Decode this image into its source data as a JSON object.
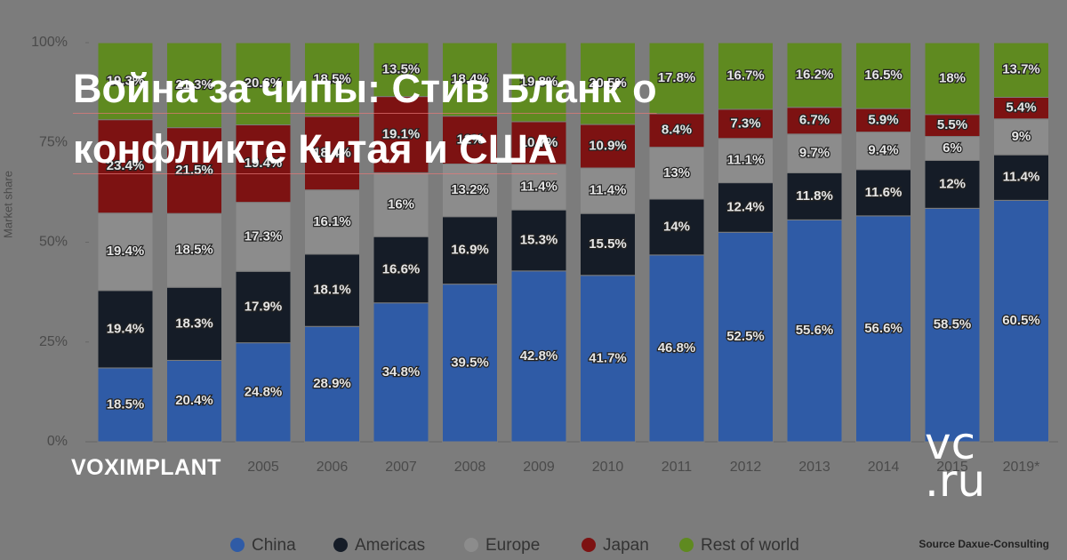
{
  "headline": "Война за чипы: Стив Бланк о конфликте Китая и США",
  "brand": "VOXIMPLANT",
  "logo_top": "vc",
  "logo_bottom": ".ru",
  "chart_data": {
    "type": "stacked_bar",
    "y_label": "Market share",
    "source": "Source Daxue-Consulting",
    "categories": [
      null,
      null,
      "2005",
      "2006",
      "2007",
      "2008",
      "2009",
      "2010",
      "2011",
      "2012",
      "2013",
      "2014",
      "2015",
      "2019*"
    ],
    "ylim": [
      0,
      100
    ],
    "yticks": [
      {
        "value": 0,
        "label": "0%"
      },
      {
        "value": 25,
        "label": "25%"
      },
      {
        "value": 50,
        "label": "50%"
      },
      {
        "value": 75,
        "label": "75%"
      },
      {
        "value": 100,
        "label": "100%"
      }
    ],
    "grid": false,
    "legend": "bottom",
    "series": [
      {
        "name": "China",
        "color": "#2f5ba6",
        "values": [
          18.5,
          20.4,
          24.8,
          28.9,
          34.8,
          39.5,
          42.8,
          41.7,
          46.8,
          52.5,
          55.6,
          56.6,
          58.5,
          60.5
        ],
        "value_labels": [
          "18.5%",
          "20.4%",
          "24.8%",
          "28.9%",
          "34.8%",
          "39.5%",
          "42.8%",
          "41.7%",
          "46.8%",
          "52.5%",
          "55.6%",
          "56.6%",
          "58.5%",
          "60.5%"
        ]
      },
      {
        "name": "Americas",
        "color": "#151c27",
        "values": [
          19.4,
          18.3,
          17.9,
          18.1,
          16.6,
          16.9,
          15.3,
          15.5,
          14,
          12.4,
          11.8,
          11.6,
          12,
          11.4
        ],
        "value_labels": [
          "19.4%",
          "18.3%",
          "17.9%",
          "18.1%",
          "16.6%",
          "16.9%",
          "15.3%",
          "15.5%",
          "14%",
          "12.4%",
          "11.8%",
          "11.6%",
          "12%",
          "11.4%"
        ]
      },
      {
        "name": "Europe",
        "color": "#8c8c8c",
        "values": [
          19.4,
          18.5,
          17.3,
          16.1,
          16,
          13.2,
          11.4,
          11.4,
          13,
          11.1,
          9.7,
          9.4,
          6,
          9
        ],
        "value_labels": [
          "19.4%",
          "18.5%",
          "17.3%",
          "16.1%",
          "16%",
          "13.2%",
          "11.4%",
          "11.4%",
          "13%",
          "11.1%",
          "9.7%",
          "9.4%",
          "6%",
          "9%"
        ]
      },
      {
        "name": "Japan",
        "color": "#7d1212",
        "values": [
          23.4,
          21.5,
          19.4,
          18.4,
          19.1,
          12,
          10.7,
          10.9,
          8.4,
          7.3,
          6.7,
          5.9,
          5.5,
          5.4
        ],
        "value_labels": [
          "23.4%",
          "21.5%",
          "19.4%",
          "18.4%",
          "19.1%",
          "12%",
          "10.7%",
          "10.9%",
          "8.4%",
          "7.3%",
          "6.7%",
          "5.9%",
          "5.5%",
          "5.4%"
        ]
      },
      {
        "name": "Rest of world",
        "color": "#5f8a20",
        "values": [
          19.3,
          21.3,
          20.6,
          18.5,
          13.5,
          18.4,
          19.8,
          20.5,
          17.8,
          16.7,
          16.2,
          16.5,
          18,
          13.7
        ],
        "value_labels": [
          "19.3%",
          "21.3%",
          "20.6%",
          "18.5%",
          "13.5%",
          "18.4%",
          "19.8%",
          "20.5%",
          "17.8%",
          "16.7%",
          "16.2%",
          "16.5%",
          "18%",
          "13.7%"
        ]
      }
    ]
  }
}
